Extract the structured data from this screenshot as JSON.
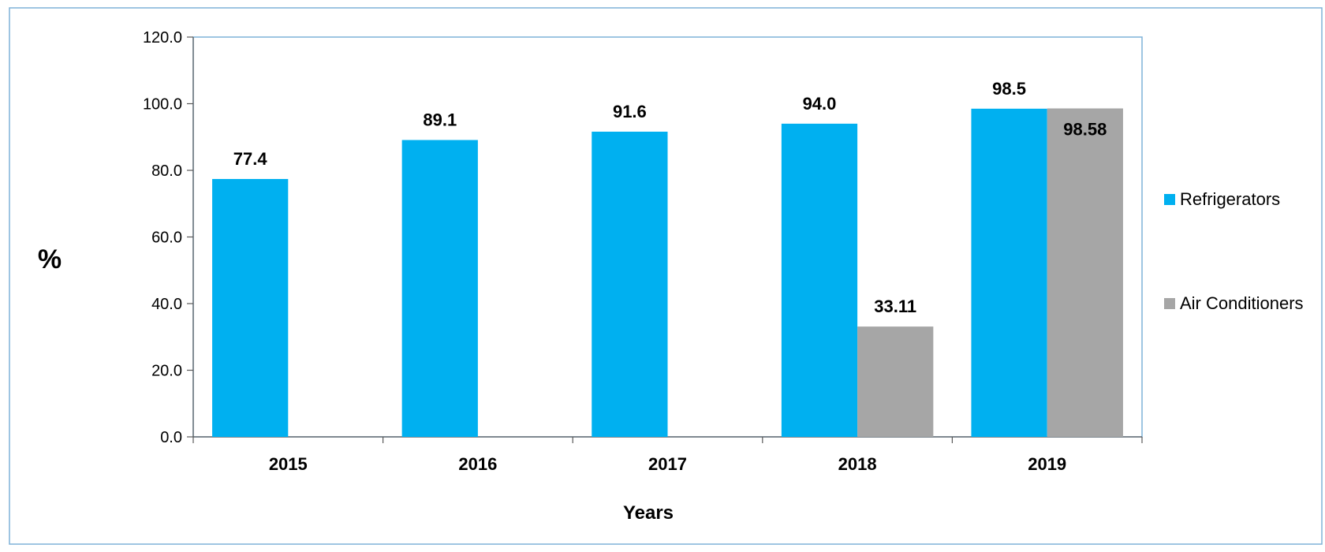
{
  "chart_data": {
    "type": "bar",
    "title": "",
    "xlabel": "Years",
    "ylabel": "%",
    "categories": [
      "2015",
      "2016",
      "2017",
      "2018",
      "2019"
    ],
    "ylim": [
      0,
      120
    ],
    "yticks": [
      0,
      20,
      40,
      60,
      80,
      100,
      120
    ],
    "ytick_labels": [
      "0.0",
      "20.0",
      "40.0",
      "60.0",
      "80.0",
      "100.0",
      "120.0"
    ],
    "grid": false,
    "legend": "right",
    "series": [
      {
        "name": "Refrigerators",
        "color": "#00B0F0",
        "values": [
          77.4,
          89.1,
          91.6,
          94.0,
          98.5
        ],
        "labels": [
          "77.4",
          "89.1",
          "91.6",
          "94.0",
          "98.5"
        ],
        "label_position": "outside"
      },
      {
        "name": "Air Conditioners",
        "color": "#A6A6A6",
        "values": [
          null,
          null,
          null,
          33.11,
          98.58
        ],
        "labels": [
          "",
          "",
          "",
          "33.11",
          "98.58"
        ],
        "label_position": "outside_except_last_inside"
      }
    ]
  }
}
